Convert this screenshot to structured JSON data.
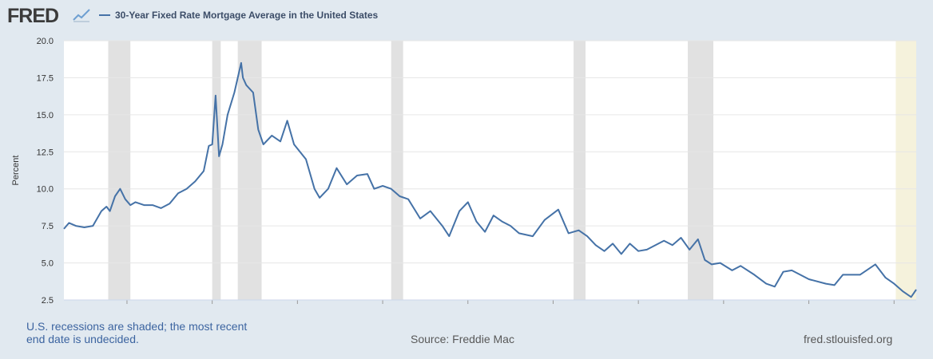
{
  "header": {
    "logo_text": "FRED",
    "logo_icon": "chart-line-icon",
    "series_title": "30-Year Fixed Rate Mortgage Average in the United States"
  },
  "footer": {
    "note": "U.S. recessions are shaded; the most recent end date is undecided.",
    "source": "Source: Freddie Mac",
    "site": "fred.stlouisfed.org"
  },
  "colors": {
    "line": "#4572a7",
    "recession": "#e1e1e1",
    "undecided": "#f5f2dc",
    "background": "#e1e9f0"
  },
  "chart_data": {
    "type": "line",
    "title": "30-Year Fixed Rate Mortgage Average in the United States",
    "ylabel": "Percent",
    "xlabel": "",
    "ylim": [
      2.5,
      20.0
    ],
    "xlim": [
      1971.3,
      2021.3
    ],
    "yticks": [
      "2.5",
      "5.0",
      "7.5",
      "10.0",
      "12.5",
      "15.0",
      "17.5",
      "20.0"
    ],
    "xticks": [
      "1975",
      "1980",
      "1985",
      "1990",
      "1995",
      "2000",
      "2005",
      "2010",
      "2015",
      "2020"
    ],
    "grid": true,
    "legend": "top-left",
    "recessions": [
      [
        1973.9,
        1975.2
      ],
      [
        1980.0,
        1980.5
      ],
      [
        1981.5,
        1982.9
      ],
      [
        1990.5,
        1991.2
      ],
      [
        2001.2,
        2001.9
      ],
      [
        2007.9,
        2009.4
      ]
    ],
    "recession_undecided": [
      2020.1,
      2021.3
    ],
    "series": [
      {
        "name": "30-Year Fixed Rate Mortgage Average in the United States",
        "x": [
          1971.3,
          1971.6,
          1972.0,
          1972.5,
          1973.0,
          1973.5,
          1973.8,
          1974.0,
          1974.3,
          1974.6,
          1974.9,
          1975.2,
          1975.5,
          1976.0,
          1976.5,
          1977.0,
          1977.5,
          1978.0,
          1978.5,
          1979.0,
          1979.5,
          1979.8,
          1980.0,
          1980.2,
          1980.4,
          1980.6,
          1980.9,
          1981.3,
          1981.7,
          1981.8,
          1982.0,
          1982.4,
          1982.7,
          1983.0,
          1983.5,
          1984.0,
          1984.4,
          1984.8,
          1985.5,
          1986.0,
          1986.3,
          1986.8,
          1987.3,
          1987.9,
          1988.5,
          1989.1,
          1989.5,
          1990.0,
          1990.5,
          1991.0,
          1991.5,
          1992.2,
          1992.8,
          1993.5,
          1993.9,
          1994.5,
          1995.0,
          1995.5,
          1996.0,
          1996.5,
          1997.0,
          1997.5,
          1998.0,
          1998.8,
          1999.5,
          2000.3,
          2000.9,
          2001.5,
          2002.0,
          2002.5,
          2003.0,
          2003.5,
          2004.0,
          2004.5,
          2005.0,
          2005.5,
          2006.5,
          2007.0,
          2007.5,
          2008.0,
          2008.5,
          2008.9,
          2009.3,
          2009.8,
          2010.5,
          2011.0,
          2011.8,
          2012.5,
          2013.0,
          2013.5,
          2014.0,
          2015.0,
          2016.0,
          2016.5,
          2017.0,
          2018.0,
          2018.9,
          2019.5,
          2020.0,
          2020.5,
          2021.0,
          2021.3
        ],
        "values": [
          7.3,
          7.7,
          7.5,
          7.4,
          7.5,
          8.5,
          8.8,
          8.5,
          9.5,
          10.0,
          9.3,
          8.9,
          9.1,
          8.9,
          8.9,
          8.7,
          9.0,
          9.7,
          10.0,
          10.5,
          11.2,
          12.9,
          13.0,
          16.3,
          12.2,
          13.0,
          15.0,
          16.5,
          18.5,
          17.5,
          17.0,
          16.5,
          14.0,
          13.0,
          13.6,
          13.2,
          14.6,
          13.0,
          12.0,
          10.0,
          9.4,
          10.0,
          11.4,
          10.3,
          10.9,
          11.0,
          10.0,
          10.2,
          10.0,
          9.5,
          9.3,
          8.0,
          8.5,
          7.5,
          6.8,
          8.5,
          9.1,
          7.8,
          7.1,
          8.2,
          7.8,
          7.5,
          7.0,
          6.8,
          7.9,
          8.6,
          7.0,
          7.2,
          6.8,
          6.2,
          5.8,
          6.3,
          5.6,
          6.3,
          5.8,
          5.9,
          6.5,
          6.2,
          6.7,
          5.9,
          6.6,
          5.2,
          4.9,
          5.0,
          4.5,
          4.8,
          4.2,
          3.6,
          3.4,
          4.4,
          4.5,
          3.9,
          3.6,
          3.5,
          4.2,
          4.2,
          4.9,
          4.0,
          3.6,
          3.1,
          2.7,
          3.2
        ]
      }
    ]
  }
}
